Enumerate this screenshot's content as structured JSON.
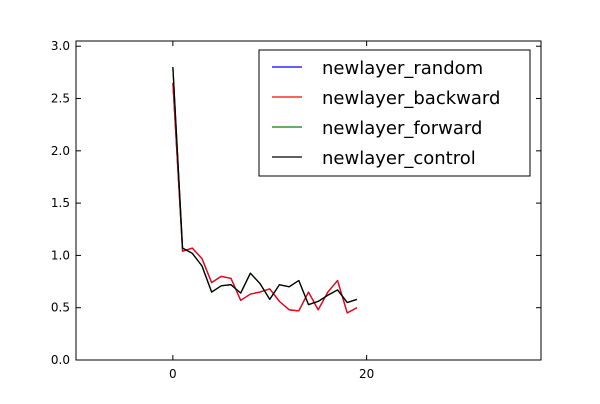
{
  "chart_data": {
    "type": "line",
    "xlim": [
      -10,
      38
    ],
    "ylim": [
      0.0,
      3.05
    ],
    "x_ticks": [
      0,
      20
    ],
    "x_tick_labels": [
      "0",
      "20"
    ],
    "y_ticks": [
      0.0,
      0.5,
      1.0,
      1.5,
      2.0,
      2.5,
      3.0
    ],
    "y_tick_labels": [
      "0.0",
      "0.5",
      "1.0",
      "1.5",
      "2.0",
      "2.5",
      "3.0"
    ],
    "grid": false,
    "legend_position": "top-right",
    "legend": [
      {
        "label": "newlayer_random",
        "color": "#0000ff"
      },
      {
        "label": "newlayer_backward",
        "color": "#ff0000"
      },
      {
        "label": "newlayer_forward",
        "color": "#008000"
      },
      {
        "label": "newlayer_control",
        "color": "#000000"
      }
    ],
    "x": [
      0,
      1,
      2,
      3,
      4,
      5,
      6,
      7,
      8,
      9,
      10,
      11,
      12,
      13,
      14,
      15,
      16,
      17,
      18,
      19
    ],
    "series": [
      {
        "name": "newlayer_random",
        "color": "#0000ff",
        "values": [
          2.65,
          1.04,
          1.07,
          0.97,
          0.74,
          0.8,
          0.78,
          0.57,
          0.63,
          0.65,
          0.68,
          0.56,
          0.48,
          0.47,
          0.65,
          0.48,
          0.65,
          0.76,
          0.45,
          0.5
        ]
      },
      {
        "name": "newlayer_backward",
        "color": "#ff0000",
        "values": [
          2.65,
          1.04,
          1.07,
          0.97,
          0.74,
          0.8,
          0.78,
          0.57,
          0.63,
          0.65,
          0.68,
          0.56,
          0.48,
          0.47,
          0.65,
          0.48,
          0.65,
          0.76,
          0.45,
          0.5
        ]
      },
      {
        "name": "newlayer_forward",
        "color": "#008000",
        "values": [
          2.8,
          1.07,
          1.02,
          0.9,
          0.65,
          0.71,
          0.72,
          0.64,
          0.83,
          0.73,
          0.58,
          0.72,
          0.7,
          0.76,
          0.53,
          0.56,
          0.62,
          0.67,
          0.55,
          0.58
        ]
      },
      {
        "name": "newlayer_control",
        "color": "#000000",
        "values": [
          2.8,
          1.07,
          1.02,
          0.9,
          0.65,
          0.71,
          0.72,
          0.64,
          0.83,
          0.73,
          0.58,
          0.72,
          0.7,
          0.76,
          0.53,
          0.56,
          0.62,
          0.67,
          0.55,
          0.58
        ]
      }
    ]
  }
}
